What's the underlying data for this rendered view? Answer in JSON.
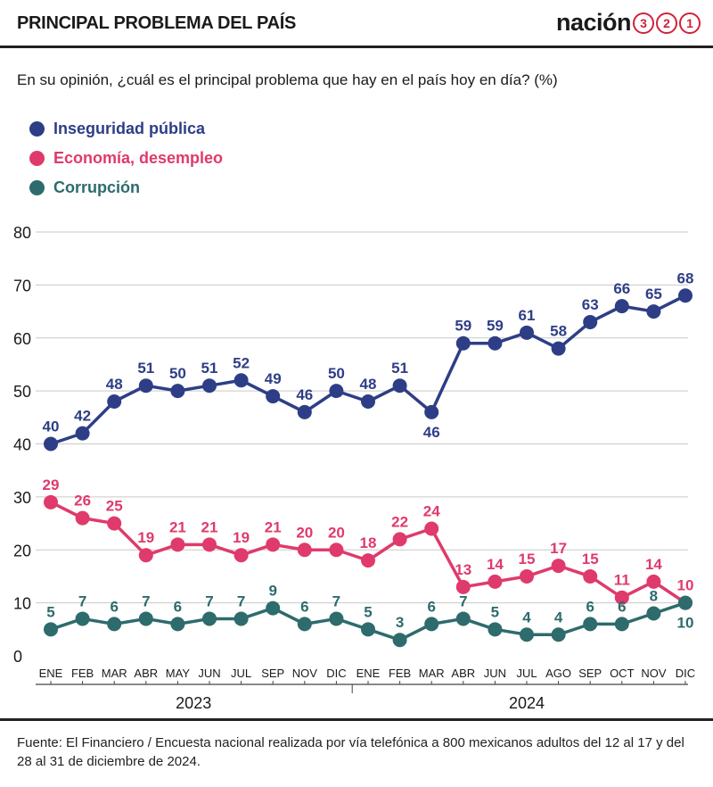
{
  "header": {
    "title": "PRINCIPAL PROBLEMA DEL PAÍS",
    "brand_word": "nación",
    "brand_digits": [
      "3",
      "2",
      "1"
    ]
  },
  "subtitle": "En su opinión, ¿cuál es el principal problema que hay en el país hoy en día?  (%)",
  "colors": {
    "inseguridad": "#2e3e86",
    "economia": "#df3a6b",
    "corrupcion": "#2e6b6c",
    "brand_accent": "#d0213a"
  },
  "chart_data": {
    "type": "line",
    "title": "",
    "xlabel": "",
    "ylabel": "",
    "ylim": [
      0,
      80
    ],
    "yticks": [
      0,
      10,
      20,
      30,
      40,
      50,
      60,
      70,
      80
    ],
    "grid": true,
    "legend_position": "top-left",
    "categories": [
      "ENE",
      "FEB",
      "MAR",
      "ABR",
      "MAY",
      "JUN",
      "JUL",
      "SEP",
      "NOV",
      "DIC",
      "ENE",
      "FEB",
      "MAR",
      "ABR",
      "JUN",
      "JUL",
      "AGO",
      "SEP",
      "OCT",
      "NOV",
      "DIC"
    ],
    "year_groups": [
      {
        "label": "2023",
        "start": 0,
        "end": 9
      },
      {
        "label": "2024",
        "start": 10,
        "end": 20
      }
    ],
    "series": [
      {
        "name": "Inseguridad pública",
        "color": "#2e3e86",
        "label_position": "above",
        "values": [
          40,
          42,
          48,
          51,
          50,
          51,
          52,
          49,
          46,
          50,
          48,
          51,
          46,
          59,
          59,
          61,
          58,
          63,
          66,
          65,
          68
        ]
      },
      {
        "name": "Economía, desempleo",
        "color": "#df3a6b",
        "label_position": "above",
        "values": [
          29,
          26,
          25,
          19,
          21,
          21,
          19,
          21,
          20,
          20,
          18,
          22,
          24,
          13,
          14,
          15,
          17,
          15,
          11,
          14,
          10
        ]
      },
      {
        "name": "Corrupción",
        "color": "#2e6b6c",
        "label_position": "above",
        "values": [
          5,
          7,
          6,
          7,
          6,
          7,
          7,
          9,
          6,
          7,
          5,
          3,
          6,
          7,
          5,
          4,
          4,
          6,
          6,
          8,
          10
        ]
      }
    ]
  },
  "source": "Fuente: El Financiero / Encuesta nacional realizada por vía telefónica a 800 mexicanos adultos del 12 al 17 y del 28 al 31 de diciembre de 2024."
}
